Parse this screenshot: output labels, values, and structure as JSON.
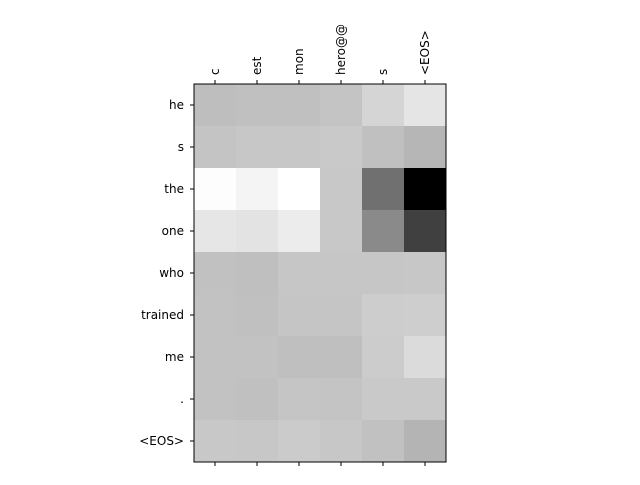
{
  "chart_data": {
    "type": "heatmap",
    "x_labels": [
      "c",
      "est",
      "mon",
      "hero@@",
      "s",
      "<EOS>"
    ],
    "y_labels": [
      "he",
      "s",
      "the",
      "one",
      "who",
      "trained",
      "me",
      ".",
      "<EOS>"
    ],
    "colormap": "gray",
    "gray_levels": [
      [
        190,
        192,
        192,
        196,
        213,
        229
      ],
      [
        196,
        199,
        199,
        201,
        192,
        182
      ],
      [
        253,
        244,
        255,
        200,
        112,
        0
      ],
      [
        230,
        227,
        236,
        200,
        138,
        64
      ],
      [
        193,
        191,
        198,
        198,
        198,
        199
      ],
      [
        194,
        192,
        197,
        197,
        205,
        206
      ],
      [
        194,
        194,
        191,
        191,
        204,
        219
      ],
      [
        194,
        192,
        197,
        196,
        201,
        201
      ],
      [
        200,
        199,
        203,
        199,
        193,
        180
      ]
    ],
    "grid": false,
    "x_axis_position": "top",
    "title": "",
    "xlabel": "",
    "ylabel": ""
  }
}
